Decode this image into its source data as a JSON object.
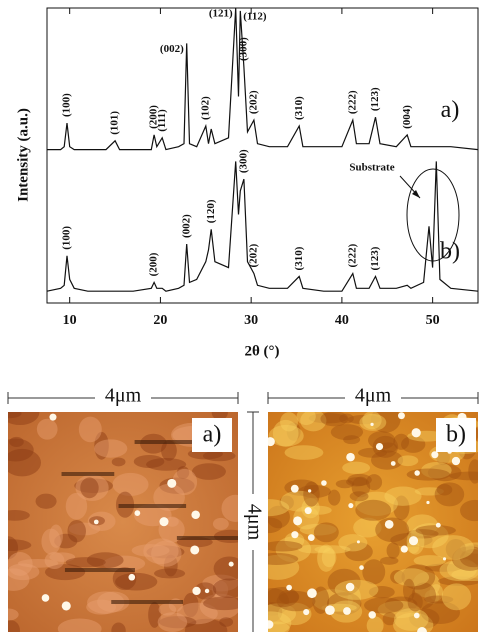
{
  "chart_data": {
    "type": "line",
    "xlabel": "2θ (°)",
    "ylabel": "Intensity (a.u.)",
    "xlim": [
      7.5,
      55
    ],
    "xticks": [
      10,
      20,
      30,
      40,
      50
    ],
    "ylim": [
      0,
      100
    ],
    "x": [
      7.5,
      9,
      9.4,
      9.7,
      10,
      10.5,
      12,
      14,
      15,
      15.5,
      17,
      19,
      19.3,
      19.6,
      20.2,
      20.6,
      22,
      22.6,
      22.9,
      23.2,
      24,
      25,
      25.3,
      25.6,
      26,
      27.5,
      28.3,
      28.6,
      28.8,
      29.2,
      29.6,
      30.3,
      30.7,
      32,
      34,
      35.3,
      35.7,
      38,
      40,
      41.2,
      41.6,
      43,
      43.7,
      44.2,
      46,
      47.2,
      47.6,
      49,
      49.6,
      50,
      50.4,
      50.8,
      52,
      55
    ],
    "series": [
      {
        "name": "a)",
        "color": "#111111",
        "values": [
          52,
          52,
          53,
          61,
          53,
          52,
          52,
          52,
          55,
          52,
          52,
          52,
          57,
          53,
          56,
          52,
          53,
          54,
          88,
          54,
          53,
          60,
          54,
          59,
          54,
          56,
          100,
          70,
          99,
          80,
          58,
          62,
          54,
          53,
          53,
          60,
          53,
          53,
          53,
          62,
          54,
          54,
          63,
          54,
          53,
          57,
          53,
          53,
          53,
          53,
          53,
          53,
          53,
          52
        ],
        "annotations": [
          {
            "text": "(100)",
            "x": 9.7,
            "orientation": "vertical"
          },
          {
            "text": "(101)",
            "x": 15,
            "orientation": "vertical"
          },
          {
            "text": "(200)",
            "x": 19.3,
            "orientation": "vertical"
          },
          {
            "text": "(111)",
            "x": 20.2,
            "orientation": "vertical"
          },
          {
            "text": "(002)",
            "x": 22.9,
            "orientation": "left"
          },
          {
            "text": "(102)",
            "x": 25,
            "orientation": "vertical"
          },
          {
            "text": "(121)",
            "x": 28.3,
            "orientation": "left"
          },
          {
            "text": "(112)",
            "x": 28.8,
            "orientation": "right"
          },
          {
            "text": "(300)",
            "x": 29.2,
            "orientation": "vertical"
          },
          {
            "text": "(202)",
            "x": 30.3,
            "orientation": "vertical"
          },
          {
            "text": "(310)",
            "x": 35.3,
            "orientation": "vertical"
          },
          {
            "text": "(222)",
            "x": 41.2,
            "orientation": "vertical"
          },
          {
            "text": "(123)",
            "x": 43.7,
            "orientation": "vertical"
          },
          {
            "text": "(004)",
            "x": 47.2,
            "orientation": "vertical"
          }
        ]
      },
      {
        "name": "b)",
        "color": "#111111",
        "values": [
          4,
          5,
          6,
          16,
          8,
          5,
          4,
          4,
          4,
          4,
          4,
          5,
          7,
          5,
          5,
          4,
          5,
          6,
          20,
          7,
          8,
          14,
          18,
          25,
          14,
          12,
          48,
          30,
          38,
          42,
          14,
          10,
          6,
          5,
          5,
          9,
          5,
          4,
          4,
          10,
          5,
          5,
          9,
          5,
          5,
          6,
          5,
          7,
          26,
          12,
          48,
          8,
          5,
          4
        ],
        "annotations": [
          {
            "text": "(100)",
            "x": 9.7,
            "orientation": "vertical"
          },
          {
            "text": "(200)",
            "x": 19.3,
            "orientation": "vertical"
          },
          {
            "text": "(002)",
            "x": 22.9,
            "orientation": "vertical"
          },
          {
            "text": "(120)",
            "x": 25.6,
            "orientation": "vertical"
          },
          {
            "text": "(300)",
            "x": 29.2,
            "orientation": "vertical"
          },
          {
            "text": "(202)",
            "x": 30.3,
            "orientation": "vertical"
          },
          {
            "text": "(310)",
            "x": 35.3,
            "orientation": "vertical"
          },
          {
            "text": "(222)",
            "x": 41.2,
            "orientation": "vertical"
          },
          {
            "text": "(123)",
            "x": 43.7,
            "orientation": "vertical"
          }
        ]
      }
    ],
    "substrate_label": "Substrate"
  },
  "afm": {
    "panels": [
      {
        "scale": "4μm",
        "label": "a)"
      },
      {
        "scale": "4μm",
        "label": "b)"
      }
    ],
    "vertical_scale": "4μm"
  }
}
